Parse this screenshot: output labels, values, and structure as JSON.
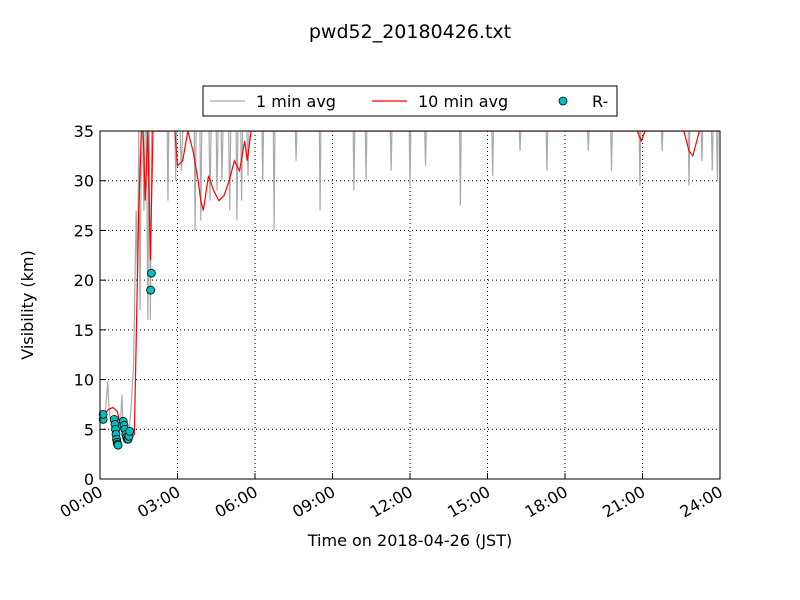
{
  "chart_data": {
    "type": "line",
    "title": "pwd52_20180426.txt",
    "x_label": "Time on 2018-04-26 (JST)",
    "y_label": "Visibility (km)",
    "xlim": [
      0,
      24
    ],
    "ylim": [
      0,
      35
    ],
    "xticks": [
      {
        "value": 0,
        "label": "00:00"
      },
      {
        "value": 3,
        "label": "03:00"
      },
      {
        "value": 6,
        "label": "06:00"
      },
      {
        "value": 9,
        "label": "09:00"
      },
      {
        "value": 12,
        "label": "12:00"
      },
      {
        "value": 15,
        "label": "15:00"
      },
      {
        "value": 18,
        "label": "18:00"
      },
      {
        "value": 21,
        "label": "21:00"
      },
      {
        "value": 24,
        "label": "24:00"
      }
    ],
    "yticks": [
      0,
      5,
      10,
      15,
      20,
      25,
      30,
      35
    ],
    "grid": true,
    "legend": "upper center",
    "series": [
      {
        "name": "1 min avg",
        "type": "line",
        "color": "#aaaaaa",
        "x": [
          0,
          0.1,
          0.2,
          0.3,
          0.35,
          0.4,
          0.5,
          0.55,
          0.6,
          0.65,
          0.7,
          0.8,
          0.85,
          0.9,
          1.0,
          1.1,
          1.2,
          1.3,
          1.4,
          1.45,
          1.5,
          1.55,
          1.6,
          1.65,
          1.7,
          1.75,
          1.8,
          1.85,
          1.9,
          1.95,
          2.0,
          2.05,
          2.1,
          2.6,
          2.63,
          2.66,
          2.9,
          2.93,
          2.96,
          3.1,
          3.15,
          3.2,
          3.65,
          3.68,
          3.72,
          3.87,
          3.9,
          3.94,
          4.22,
          4.26,
          4.3,
          4.5,
          4.53,
          4.57,
          4.69,
          4.72,
          4.76,
          4.98,
          5.02,
          5.06,
          5.27,
          5.3,
          5.34,
          5.45,
          5.48,
          5.52,
          5.69,
          5.73,
          5.77,
          6.27,
          6.3,
          6.33,
          6.71,
          6.74,
          6.77,
          7.56,
          7.59,
          7.62,
          8.49,
          8.52,
          8.55,
          9.8,
          9.83,
          9.86,
          10.27,
          10.3,
          10.33,
          11.24,
          11.27,
          11.3,
          11.97,
          12.0,
          12.03,
          12.57,
          12.6,
          12.63,
          13.92,
          13.95,
          13.98,
          15.17,
          15.2,
          15.23,
          16.23,
          16.26,
          16.29,
          17.27,
          17.3,
          17.33,
          18.87,
          18.9,
          18.93,
          19.77,
          19.8,
          19.83,
          20.87,
          20.9,
          20.93,
          21.73,
          21.76,
          21.79,
          22.77,
          22.8,
          22.83,
          23.27,
          23.3,
          23.33,
          23.67,
          23.7,
          23.73,
          23.87,
          23.9,
          23.93,
          24
        ],
        "values": [
          7,
          6,
          6.5,
          9.8,
          7,
          6,
          5,
          6,
          4.5,
          3.5,
          3.8,
          6,
          8.5,
          5,
          4,
          4,
          7,
          11.5,
          27,
          20,
          35,
          17,
          35,
          35,
          27,
          35,
          35,
          16,
          35,
          16,
          35,
          35,
          35,
          35,
          28,
          35,
          35,
          30,
          35,
          35,
          31,
          35,
          35,
          25,
          35,
          35,
          26,
          35,
          35,
          28,
          35,
          35,
          29,
          35,
          35,
          30,
          35,
          35,
          27,
          35,
          35,
          26,
          35,
          35,
          28,
          35,
          35,
          30.5,
          35,
          35,
          30,
          35,
          35,
          25,
          35,
          35,
          32,
          35,
          35,
          27,
          35,
          35,
          29,
          35,
          35,
          30,
          35,
          35,
          31,
          35,
          35,
          29.5,
          35,
          35,
          31.5,
          35,
          35,
          27.5,
          35,
          35,
          30.5,
          35,
          35,
          33,
          35,
          35,
          31,
          35,
          35,
          33,
          35,
          35,
          31,
          35,
          35,
          29.5,
          35,
          35,
          33,
          35,
          35,
          29.5,
          35,
          35,
          32,
          35,
          35,
          31,
          35,
          35,
          30,
          35,
          35
        ]
      },
      {
        "name": "10 min avg",
        "type": "line",
        "color": "#ff0000",
        "x": [
          0,
          0.17,
          0.33,
          0.5,
          0.67,
          0.83,
          1.0,
          1.17,
          1.33,
          1.5,
          1.6,
          1.67,
          1.75,
          1.85,
          1.95,
          2.05,
          2.5,
          2.9,
          3.0,
          3.2,
          3.4,
          3.6,
          3.8,
          3.9,
          4.0,
          4.2,
          4.4,
          4.6,
          4.8,
          5.0,
          5.2,
          5.4,
          5.6,
          5.7,
          5.85,
          20.8,
          20.95,
          21.1,
          22.6,
          22.8,
          22.95,
          23.2,
          23.4,
          24
        ],
        "values": [
          6.5,
          6.5,
          7,
          7.2,
          6.8,
          5,
          5,
          4,
          4.5,
          27,
          35,
          35,
          28,
          35,
          22,
          35,
          35,
          35,
          31.5,
          32,
          35,
          33,
          30,
          28,
          27,
          30.5,
          29,
          28,
          28.5,
          30,
          32,
          31,
          34,
          32,
          35,
          35,
          34,
          35,
          35,
          33,
          32.5,
          35,
          35,
          35
        ]
      },
      {
        "name": "R-",
        "type": "scatter",
        "color": "#00bfbf",
        "x": [
          0.12,
          0.12,
          0.55,
          0.58,
          0.6,
          0.62,
          0.64,
          0.66,
          0.68,
          0.7,
          0.9,
          0.93,
          0.96,
          1.0,
          1.03,
          1.06,
          1.09,
          1.12,
          1.15,
          1.96,
          1.99
        ],
        "values": [
          6,
          6.5,
          6,
          5.5,
          5,
          4.5,
          4,
          3.7,
          3.5,
          3.4,
          5.8,
          5.4,
          5,
          4.5,
          4.2,
          4,
          4,
          4.3,
          4.8,
          19,
          20.7
        ]
      }
    ]
  }
}
